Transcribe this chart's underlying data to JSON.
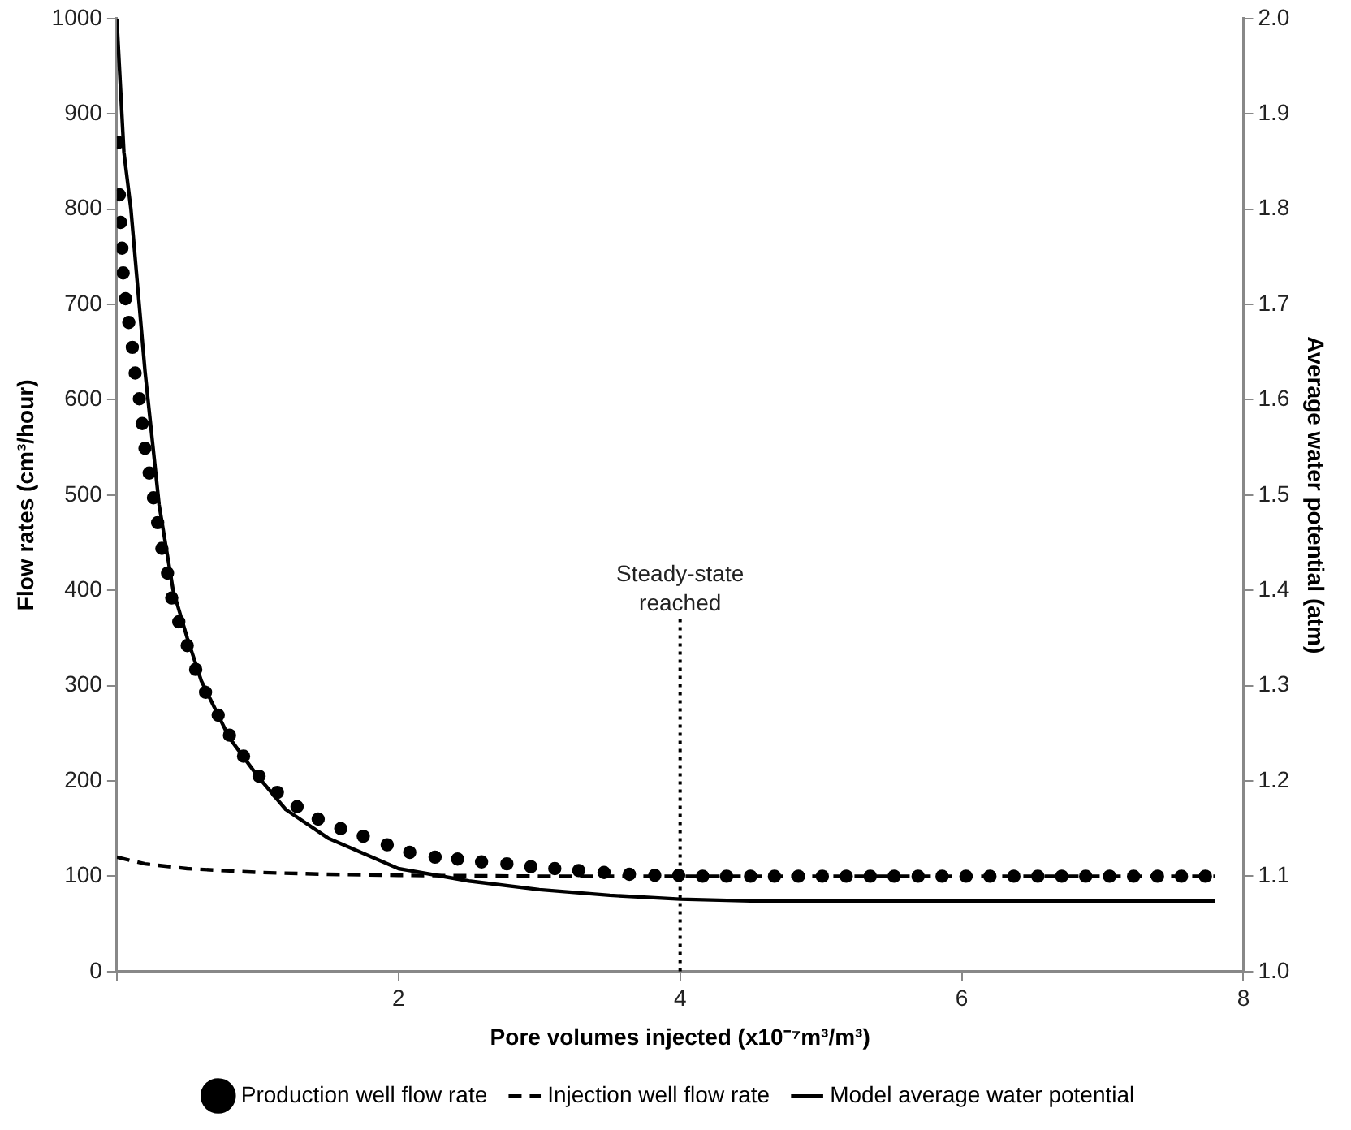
{
  "chart_data": {
    "type": "line",
    "xlabel": "Pore volumes injected (x10⁻⁷m³/m³)",
    "ylabel": "Flow rates (cm³/hour)",
    "y2label": "Average water potential (atm)",
    "xlim": [
      0,
      8
    ],
    "xticks": [
      {
        "value": 0,
        "label": null
      },
      2,
      4,
      6,
      8
    ],
    "ylim": [
      0,
      1000
    ],
    "yticks": [
      0,
      100,
      200,
      300,
      400,
      500,
      600,
      700,
      800,
      900,
      1000
    ],
    "y2lim": [
      1,
      2
    ],
    "y2ticks": [
      {
        "value": 1,
        "label": "1.0"
      },
      1.1,
      1.2,
      1.3,
      1.4,
      1.5,
      1.6,
      1.7,
      1.8,
      1.9,
      {
        "value": 2,
        "label": "2.0"
      }
    ],
    "grid": false,
    "legend": "bottom",
    "ref_lines": [
      {
        "axis": "x",
        "value": 4,
        "label": "Steady-state reached",
        "line_style": "dotted",
        "color": "#000000"
      }
    ],
    "series": [
      {
        "name": "Production well flow rate",
        "type": "scatter",
        "marker": "circle",
        "color": "#000000",
        "x": [
          0.01,
          0.018,
          0.027,
          0.036,
          0.045,
          0.062,
          0.085,
          0.11,
          0.13,
          0.16,
          0.18,
          0.2,
          0.23,
          0.26,
          0.29,
          0.32,
          0.36,
          0.39,
          0.44,
          0.5,
          0.56,
          0.63,
          0.72,
          0.8,
          0.9,
          1.01,
          1.14,
          1.28,
          1.43,
          1.59,
          1.75,
          1.92,
          2.08,
          2.26,
          2.42,
          2.59,
          2.77,
          2.94,
          3.11,
          3.28,
          3.46,
          3.64,
          3.82,
          3.99,
          4.16,
          4.33,
          4.5,
          4.67,
          4.84,
          5.01,
          5.18,
          5.35,
          5.52,
          5.69,
          5.86,
          6.03,
          6.2,
          6.37,
          6.54,
          6.71,
          6.88,
          7.05,
          7.22,
          7.39,
          7.56,
          7.73
        ],
        "values": [
          870,
          815,
          786,
          759,
          733,
          706,
          681,
          655,
          628,
          601,
          575,
          549,
          523,
          497,
          471,
          444,
          418,
          392,
          367,
          342,
          317,
          293,
          269,
          248,
          226,
          205,
          188,
          173,
          160,
          150,
          142,
          133,
          125,
          120,
          118,
          115,
          113,
          110,
          108,
          106,
          104,
          102,
          101,
          101,
          100,
          100,
          100,
          100,
          100,
          100,
          100,
          100,
          100,
          100,
          100,
          100,
          100,
          100,
          100,
          100,
          100,
          100,
          100,
          100,
          100,
          100
        ]
      },
      {
        "name": "Injection well flow rate",
        "type": "line",
        "line_style": "dashed",
        "marker": "none",
        "color": "#000000",
        "x": [
          0,
          0.2,
          0.5,
          1,
          1.5,
          2,
          3,
          4,
          7.8
        ],
        "values": [
          120,
          113,
          108,
          104,
          102,
          101,
          100,
          100,
          100
        ]
      },
      {
        "name": "Model average water potential",
        "type": "line",
        "axis": "y2",
        "line_style": "solid",
        "marker": "none",
        "color": "#000000",
        "x": [
          0,
          0.05,
          0.1,
          0.2,
          0.3,
          0.4,
          0.5,
          0.6,
          0.8,
          1,
          1.2,
          1.5,
          2,
          2.5,
          3,
          3.5,
          4,
          4.5,
          5,
          6,
          7,
          7.8
        ],
        "values": [
          2,
          1.86,
          1.8,
          1.63,
          1.49,
          1.4,
          1.35,
          1.305,
          1.245,
          1.205,
          1.17,
          1.14,
          1.108,
          1.095,
          1.086,
          1.08,
          1.076,
          1.074,
          1.074,
          1.074,
          1.074,
          1.074
        ]
      }
    ]
  }
}
